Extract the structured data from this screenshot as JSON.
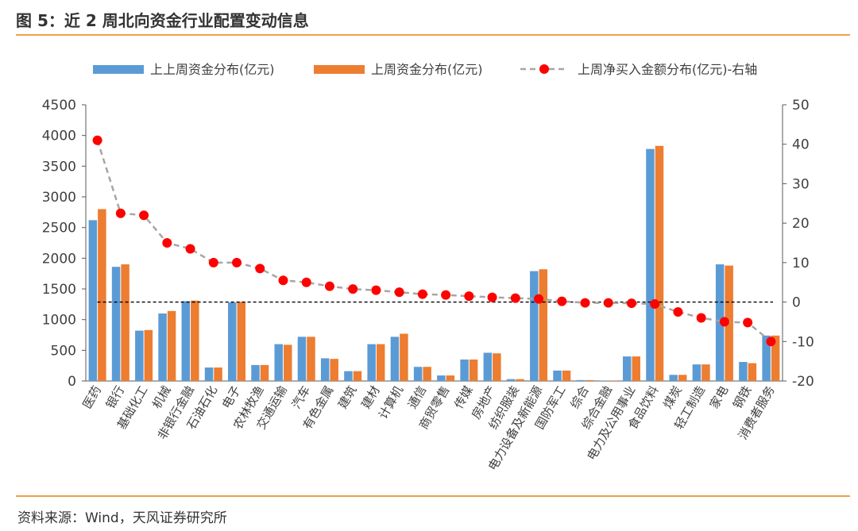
{
  "figure": {
    "title": "图 5：近 2 周北向资金行业配置变动信息",
    "source": "资料来源：Wind，天风证券研究所"
  },
  "colors": {
    "series1": "#5b9bd5",
    "series2": "#ed7d31",
    "series3_marker": "#ff0000",
    "series3_line": "#a6a6a6",
    "rule": "#f0a04b"
  },
  "chart_data": {
    "type": "bar",
    "categories": [
      "医药",
      "银行",
      "基础化工",
      "机械",
      "非银行金融",
      "石油石化",
      "电子",
      "农林牧渔",
      "交通运输",
      "汽车",
      "有色金属",
      "建筑",
      "建材",
      "计算机",
      "通信",
      "商贸零售",
      "传媒",
      "房地产",
      "纺织服装",
      "电力设备及新能源",
      "国防军工",
      "综合",
      "综合金融",
      "电力及公用事业",
      "食品饮料",
      "煤炭",
      "轻工制造",
      "家电",
      "钢铁",
      "消费者服务"
    ],
    "series": [
      {
        "name": "上上周资金分布(亿元)",
        "type": "bar",
        "axis": "left",
        "values": [
          2620,
          1860,
          820,
          1100,
          1300,
          220,
          1280,
          260,
          600,
          720,
          370,
          160,
          600,
          720,
          230,
          90,
          350,
          460,
          30,
          1790,
          170,
          15,
          8,
          400,
          3780,
          100,
          270,
          1900,
          310,
          740
        ]
      },
      {
        "name": "上周资金分布(亿元)",
        "type": "bar",
        "axis": "left",
        "values": [
          2800,
          1900,
          830,
          1140,
          1310,
          220,
          1290,
          260,
          590,
          720,
          360,
          160,
          600,
          770,
          230,
          90,
          350,
          450,
          30,
          1820,
          170,
          15,
          8,
          400,
          3830,
          100,
          270,
          1880,
          290,
          740
        ]
      },
      {
        "name": "上周净买入金额分布(亿元)-右轴",
        "type": "line",
        "axis": "right",
        "values": [
          41,
          22.5,
          22,
          15,
          13.5,
          10,
          10,
          8.5,
          5.5,
          5,
          4,
          3.3,
          3,
          2.5,
          2,
          1.8,
          1.5,
          1.2,
          1,
          0.8,
          0.2,
          -0.2,
          -0.2,
          -0.3,
          -0.5,
          -2.5,
          -4,
          -5,
          -5.2,
          -10
        ]
      }
    ],
    "y_left": {
      "min": 0,
      "max": 4500,
      "step": 500,
      "ticks": [
        "0",
        "500",
        "1000",
        "1500",
        "2000",
        "2500",
        "3000",
        "3500",
        "4000",
        "4500"
      ]
    },
    "y_right": {
      "min": -20,
      "max": 50,
      "step": 10,
      "ticks": [
        "-20",
        "-10",
        "0",
        "10",
        "20",
        "30",
        "40",
        "50"
      ]
    },
    "grid": false,
    "legend_position": "top",
    "zero_line": "dashed at right-axis 0"
  }
}
